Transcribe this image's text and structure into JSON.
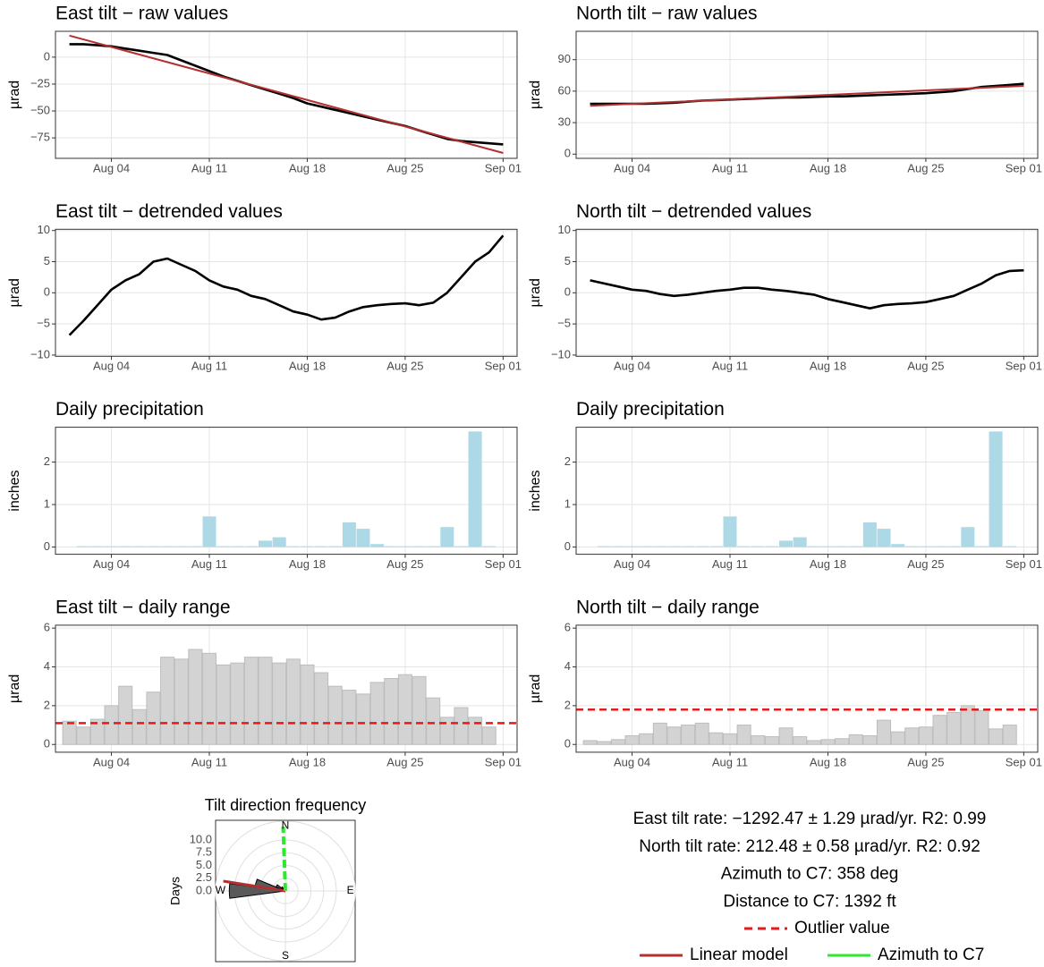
{
  "chart_data": [
    {
      "type": "line",
      "title": "East tilt − raw values",
      "y_label": "µrad",
      "x": [
        "Aug 01",
        "Aug 02",
        "Aug 03",
        "Aug 04",
        "Aug 05",
        "Aug 06",
        "Aug 07",
        "Aug 08",
        "Aug 09",
        "Aug 10",
        "Aug 11",
        "Aug 12",
        "Aug 13",
        "Aug 14",
        "Aug 15",
        "Aug 16",
        "Aug 17",
        "Aug 18",
        "Aug 19",
        "Aug 20",
        "Aug 21",
        "Aug 22",
        "Aug 23",
        "Aug 24",
        "Aug 25",
        "Aug 26",
        "Aug 27",
        "Aug 28",
        "Aug 29",
        "Aug 30",
        "Aug 31",
        "Sep 01"
      ],
      "series": [
        {
          "color": "#000000",
          "values": [
            12,
            12,
            11,
            10,
            8,
            6,
            4,
            2,
            -3,
            -8,
            -13,
            -18,
            -22,
            -26,
            -30,
            -34,
            -38,
            -43,
            -46,
            -49,
            -52,
            -55,
            -58,
            -61,
            -64,
            -68,
            -72,
            -76,
            -78,
            -79,
            -80,
            -81
          ]
        },
        {
          "color": "#b2302f",
          "x": [
            "Aug 01",
            "Sep 01"
          ],
          "values": [
            20,
            -89
          ]
        }
      ],
      "xlim": [
        "Jul 31",
        "Sep 02"
      ],
      "xticks": [
        "Aug 04",
        "Aug 11",
        "Aug 18",
        "Aug 25",
        "Sep 01"
      ],
      "ylim": [
        -94,
        24
      ],
      "yticks": [
        {
          "value": -75,
          "label": "−75"
        },
        {
          "value": -50,
          "label": "−50"
        },
        {
          "value": -25,
          "label": "−25"
        },
        0
      ],
      "grid": true
    },
    {
      "type": "line",
      "title": "North tilt − raw values",
      "y_label": "µrad",
      "x": [
        "Aug 01",
        "Aug 02",
        "Aug 03",
        "Aug 04",
        "Aug 05",
        "Aug 06",
        "Aug 07",
        "Aug 08",
        "Aug 09",
        "Aug 10",
        "Aug 11",
        "Aug 12",
        "Aug 13",
        "Aug 14",
        "Aug 15",
        "Aug 16",
        "Aug 17",
        "Aug 18",
        "Aug 19",
        "Aug 20",
        "Aug 21",
        "Aug 22",
        "Aug 23",
        "Aug 24",
        "Aug 25",
        "Aug 26",
        "Aug 27",
        "Aug 28",
        "Aug 29",
        "Aug 30",
        "Aug 31",
        "Sep 01"
      ],
      "series": [
        {
          "color": "#000000",
          "values": [
            48,
            48,
            48,
            48,
            48,
            48.5,
            49,
            50,
            51,
            51.5,
            52,
            52.5,
            53,
            53.5,
            54,
            54,
            54.5,
            55,
            55,
            55.5,
            56,
            56.5,
            57,
            57.5,
            58,
            59,
            60,
            62,
            64,
            65,
            66,
            67
          ]
        },
        {
          "color": "#b2302f",
          "x": [
            "Aug 01",
            "Sep 01"
          ],
          "values": [
            46,
            65
          ]
        }
      ],
      "xlim": [
        "Jul 31",
        "Sep 02"
      ],
      "xticks": [
        "Aug 04",
        "Aug 11",
        "Aug 18",
        "Aug 25",
        "Sep 01"
      ],
      "ylim": [
        -4,
        117
      ],
      "yticks": [
        0,
        30,
        60,
        90
      ],
      "grid": true
    },
    {
      "type": "line",
      "title": "East tilt − detrended values",
      "y_label": "µrad",
      "x": [
        "Aug 01",
        "Aug 02",
        "Aug 03",
        "Aug 04",
        "Aug 05",
        "Aug 06",
        "Aug 07",
        "Aug 08",
        "Aug 09",
        "Aug 10",
        "Aug 11",
        "Aug 12",
        "Aug 13",
        "Aug 14",
        "Aug 15",
        "Aug 16",
        "Aug 17",
        "Aug 18",
        "Aug 19",
        "Aug 20",
        "Aug 21",
        "Aug 22",
        "Aug 23",
        "Aug 24",
        "Aug 25",
        "Aug 26",
        "Aug 27",
        "Aug 28",
        "Aug 29",
        "Aug 30",
        "Aug 31",
        "Sep 01"
      ],
      "series": [
        {
          "color": "#000000",
          "values": [
            -6.8,
            -4.5,
            -2,
            0.5,
            2,
            3,
            5,
            5.5,
            4.5,
            3.5,
            2,
            1,
            0.5,
            -0.5,
            -1,
            -2,
            -3,
            -3.5,
            -4.3,
            -4,
            -3,
            -2.3,
            -2,
            -1.8,
            -1.7,
            -2,
            -1.6,
            0,
            2.5,
            5,
            6.5,
            9.2
          ]
        }
      ],
      "xlim": [
        "Jul 31",
        "Sep 02"
      ],
      "xticks": [
        "Aug 04",
        "Aug 11",
        "Aug 18",
        "Aug 25",
        "Sep 01"
      ],
      "ylim": [
        -10.2,
        10.2
      ],
      "yticks": [
        {
          "value": -10,
          "label": "−10"
        },
        {
          "value": -5,
          "label": "−5"
        },
        0,
        5,
        10
      ],
      "grid": true
    },
    {
      "type": "line",
      "title": "North tilt − detrended values",
      "y_label": "µrad",
      "x": [
        "Aug 01",
        "Aug 02",
        "Aug 03",
        "Aug 04",
        "Aug 05",
        "Aug 06",
        "Aug 07",
        "Aug 08",
        "Aug 09",
        "Aug 10",
        "Aug 11",
        "Aug 12",
        "Aug 13",
        "Aug 14",
        "Aug 15",
        "Aug 16",
        "Aug 17",
        "Aug 18",
        "Aug 19",
        "Aug 20",
        "Aug 21",
        "Aug 22",
        "Aug 23",
        "Aug 24",
        "Aug 25",
        "Aug 26",
        "Aug 27",
        "Aug 28",
        "Aug 29",
        "Aug 30",
        "Aug 31",
        "Sep 01"
      ],
      "series": [
        {
          "color": "#000000",
          "values": [
            2,
            1.5,
            1,
            0.5,
            0.3,
            -0.2,
            -0.5,
            -0.3,
            0,
            0.3,
            0.5,
            0.8,
            0.8,
            0.5,
            0.3,
            0,
            -0.3,
            -1,
            -1.5,
            -2,
            -2.5,
            -2,
            -1.8,
            -1.7,
            -1.5,
            -1,
            -0.5,
            0.5,
            1.5,
            2.8,
            3.5,
            3.6
          ]
        }
      ],
      "xlim": [
        "Jul 31",
        "Sep 02"
      ],
      "xticks": [
        "Aug 04",
        "Aug 11",
        "Aug 18",
        "Aug 25",
        "Sep 01"
      ],
      "ylim": [
        -10.2,
        10.2
      ],
      "yticks": [
        {
          "value": -10,
          "label": "−10"
        },
        {
          "value": -5,
          "label": "−5"
        },
        0,
        5,
        10
      ],
      "grid": true
    },
    {
      "type": "bar",
      "title": "Daily precipitation",
      "y_label": "inches",
      "color": "#add8e6",
      "x": [
        "Aug 02",
        "Aug 03",
        "Aug 04",
        "Aug 05",
        "Aug 06",
        "Aug 07",
        "Aug 08",
        "Aug 09",
        "Aug 10",
        "Aug 11",
        "Aug 12",
        "Aug 13",
        "Aug 14",
        "Aug 15",
        "Aug 16",
        "Aug 17",
        "Aug 18",
        "Aug 19",
        "Aug 20",
        "Aug 21",
        "Aug 22",
        "Aug 23",
        "Aug 24",
        "Aug 25",
        "Aug 26",
        "Aug 27",
        "Aug 28",
        "Aug 29",
        "Aug 30",
        "Aug 31"
      ],
      "values": [
        0.02,
        0.02,
        0.02,
        0.02,
        0.02,
        0.02,
        0.02,
        0.02,
        0.02,
        0.72,
        0.02,
        0.02,
        0.02,
        0.15,
        0.23,
        0.02,
        0.02,
        0.02,
        0.02,
        0.58,
        0.43,
        0.07,
        0.02,
        0.02,
        0.02,
        0.02,
        0.47,
        0.02,
        2.72,
        0.02
      ],
      "xlim": [
        "Jul 31",
        "Sep 02"
      ],
      "xticks": [
        "Aug 04",
        "Aug 11",
        "Aug 18",
        "Aug 25",
        "Sep 01"
      ],
      "ylim": [
        -0.17,
        2.82
      ],
      "yticks": [
        0,
        1,
        2
      ],
      "grid": true
    },
    {
      "type": "bar",
      "title": "Daily precipitation",
      "y_label": "inches",
      "color": "#add8e6",
      "x": [
        "Aug 02",
        "Aug 03",
        "Aug 04",
        "Aug 05",
        "Aug 06",
        "Aug 07",
        "Aug 08",
        "Aug 09",
        "Aug 10",
        "Aug 11",
        "Aug 12",
        "Aug 13",
        "Aug 14",
        "Aug 15",
        "Aug 16",
        "Aug 17",
        "Aug 18",
        "Aug 19",
        "Aug 20",
        "Aug 21",
        "Aug 22",
        "Aug 23",
        "Aug 24",
        "Aug 25",
        "Aug 26",
        "Aug 27",
        "Aug 28",
        "Aug 29",
        "Aug 30",
        "Aug 31"
      ],
      "values": [
        0.02,
        0.02,
        0.02,
        0.02,
        0.02,
        0.02,
        0.02,
        0.02,
        0.02,
        0.72,
        0.02,
        0.02,
        0.02,
        0.15,
        0.23,
        0.02,
        0.02,
        0.02,
        0.02,
        0.58,
        0.43,
        0.07,
        0.02,
        0.02,
        0.02,
        0.02,
        0.47,
        0.02,
        2.72,
        0.02
      ],
      "xlim": [
        "Jul 31",
        "Sep 02"
      ],
      "xticks": [
        "Aug 04",
        "Aug 11",
        "Aug 18",
        "Aug 25",
        "Sep 01"
      ],
      "ylim": [
        -0.17,
        2.82
      ],
      "yticks": [
        0,
        1,
        2
      ],
      "grid": true
    },
    {
      "type": "bar",
      "title": "East tilt − daily range",
      "y_label": "µrad",
      "color": "#d3d3d3",
      "x": [
        "Aug 01",
        "Aug 02",
        "Aug 03",
        "Aug 04",
        "Aug 05",
        "Aug 06",
        "Aug 07",
        "Aug 08",
        "Aug 09",
        "Aug 10",
        "Aug 11",
        "Aug 12",
        "Aug 13",
        "Aug 14",
        "Aug 15",
        "Aug 16",
        "Aug 17",
        "Aug 18",
        "Aug 19",
        "Aug 20",
        "Aug 21",
        "Aug 22",
        "Aug 23",
        "Aug 24",
        "Aug 25",
        "Aug 26",
        "Aug 27",
        "Aug 28",
        "Aug 29",
        "Aug 30",
        "Aug 31"
      ],
      "values": [
        1.2,
        0.9,
        1.3,
        2.0,
        3.0,
        1.8,
        2.7,
        4.5,
        4.4,
        4.9,
        4.7,
        4.1,
        4.2,
        4.5,
        4.5,
        4.2,
        4.4,
        4.1,
        3.7,
        3.0,
        2.8,
        2.6,
        3.2,
        3.4,
        3.6,
        3.5,
        2.4,
        1.4,
        1.9,
        1.4,
        0.9
      ],
      "outlier": {
        "value": 1.1,
        "color": "#e41a1c"
      },
      "xlim": [
        "Jul 31",
        "Sep 02"
      ],
      "xticks": [
        "Aug 04",
        "Aug 11",
        "Aug 18",
        "Aug 25",
        "Sep 01"
      ],
      "ylim": [
        -0.4,
        6.15
      ],
      "yticks": [
        0,
        2,
        4,
        6
      ],
      "grid": true
    },
    {
      "type": "bar",
      "title": "North tilt − daily range",
      "y_label": "µrad",
      "color": "#d3d3d3",
      "x": [
        "Aug 01",
        "Aug 02",
        "Aug 03",
        "Aug 04",
        "Aug 05",
        "Aug 06",
        "Aug 07",
        "Aug 08",
        "Aug 09",
        "Aug 10",
        "Aug 11",
        "Aug 12",
        "Aug 13",
        "Aug 14",
        "Aug 15",
        "Aug 16",
        "Aug 17",
        "Aug 18",
        "Aug 19",
        "Aug 20",
        "Aug 21",
        "Aug 22",
        "Aug 23",
        "Aug 24",
        "Aug 25",
        "Aug 26",
        "Aug 27",
        "Aug 28",
        "Aug 29",
        "Aug 30",
        "Aug 31"
      ],
      "values": [
        0.2,
        0.15,
        0.25,
        0.45,
        0.55,
        1.1,
        0.9,
        1.0,
        1.1,
        0.6,
        0.55,
        1.0,
        0.45,
        0.4,
        0.85,
        0.4,
        0.2,
        0.25,
        0.3,
        0.5,
        0.45,
        1.25,
        0.65,
        0.85,
        0.9,
        1.5,
        1.65,
        2.0,
        1.75,
        0.8,
        1.0
      ],
      "outlier": {
        "value": 1.8,
        "color": "#e41a1c"
      },
      "xlim": [
        "Jul 31",
        "Sep 02"
      ],
      "xticks": [
        "Aug 04",
        "Aug 11",
        "Aug 18",
        "Aug 25",
        "Sep 01"
      ],
      "ylim": [
        -0.4,
        6.15
      ],
      "yticks": [
        0,
        2,
        4,
        6
      ],
      "grid": true
    },
    {
      "type": "polar",
      "title": "Tilt direction frequency",
      "y_label": "Days",
      "color": "#595959",
      "directions": [
        270,
        285,
        300,
        315,
        330
      ],
      "values": [
        11,
        6,
        2,
        1,
        0.5
      ],
      "compass": [
        "N",
        "E",
        "S",
        "W"
      ],
      "rlim": [
        0,
        13.7
      ],
      "rticks": [
        {
          "value": 0,
          "label": "0.0"
        },
        {
          "value": 2.5,
          "label": "2.5"
        },
        {
          "value": 5,
          "label": "5.0"
        },
        {
          "value": 7.5,
          "label": "7.5"
        },
        {
          "value": 10,
          "label": "10.0"
        }
      ],
      "azimuth": {
        "value": 358,
        "color": "#2ee82e"
      },
      "model_direction": {
        "value": 279,
        "color": "#b2302f"
      }
    }
  ],
  "summary": {
    "lines": [
      "East tilt rate: −1292.47 ± 1.29 µrad/yr. R2: 0.99",
      "North tilt rate: 212.48 ± 0.58 µrad/yr. R2: 0.92",
      "Azimuth to C7: 358 deg",
      "Distance to C7: 1392 ft"
    ],
    "legend": [
      {
        "name": "Outlier value",
        "color": "#e41a1c",
        "style": "dashed"
      },
      {
        "name": "Linear model",
        "color": "#b2302f",
        "style": "solid"
      },
      {
        "name": "Azimuth to C7",
        "color": "#2ee82e",
        "style": "solid"
      }
    ]
  }
}
